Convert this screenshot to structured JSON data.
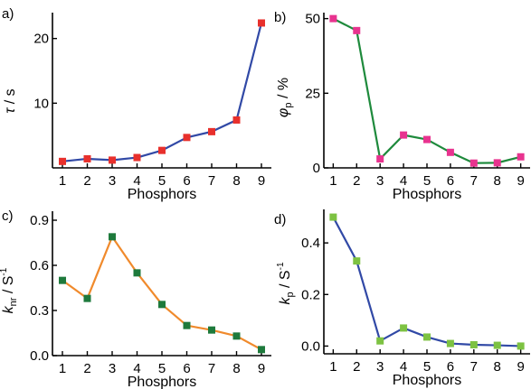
{
  "chart_data": [
    {
      "type": "line",
      "panel_label": "a)",
      "xlabel": "Phosphors",
      "ylabel": {
        "main": "τ",
        "sub": "",
        "unit": " / s",
        "sup": ""
      },
      "x": [
        1,
        2,
        3,
        4,
        5,
        6,
        7,
        8,
        9
      ],
      "series": [
        {
          "values": [
            1.0,
            1.4,
            1.2,
            1.6,
            2.7,
            4.7,
            5.6,
            7.4,
            22.4
          ]
        }
      ],
      "xlim": [
        0.6,
        9.4
      ],
      "ylim": [
        0,
        24
      ],
      "yticks": [
        10,
        20
      ],
      "line_color": "#3149a6",
      "marker_color": "#e8302c"
    },
    {
      "type": "line",
      "panel_label": "b)",
      "xlabel": "Phosphors",
      "ylabel": {
        "main": "φ",
        "sub": "p",
        "unit": " / %",
        "sup": ""
      },
      "x": [
        1,
        2,
        3,
        4,
        5,
        6,
        7,
        8,
        9
      ],
      "series": [
        {
          "values": [
            50,
            46,
            3,
            11,
            9.5,
            5.2,
            1.6,
            1.7,
            3.7
          ]
        }
      ],
      "xlim": [
        0.6,
        9.4
      ],
      "ylim": [
        0,
        52
      ],
      "yticks": [
        0,
        25,
        50
      ],
      "line_color": "#1e8a3c",
      "marker_color": "#e8338f"
    },
    {
      "type": "line",
      "panel_label": "c)",
      "xlabel": "Phosphors",
      "ylabel": {
        "main": "k",
        "sub": "nr",
        "unit": " / S",
        "sup": "-1"
      },
      "x": [
        1,
        2,
        3,
        4,
        5,
        6,
        7,
        8,
        9
      ],
      "series": [
        {
          "values": [
            0.5,
            0.38,
            0.79,
            0.55,
            0.34,
            0.2,
            0.17,
            0.13,
            0.04
          ]
        }
      ],
      "xlim": [
        0.6,
        9.4
      ],
      "ylim": [
        0,
        0.96
      ],
      "yticks": [
        0.0,
        0.3,
        0.6,
        0.9
      ],
      "ytick_labels": [
        "0.0",
        "0.3",
        "0.6",
        "0.9"
      ],
      "line_color": "#f08a2c",
      "marker_color": "#1e7a3c"
    },
    {
      "type": "line",
      "panel_label": "d)",
      "xlabel": "Phosphors",
      "ylabel": {
        "main": "k",
        "sub": "p",
        "unit": " / S",
        "sup": "-1"
      },
      "x": [
        1,
        2,
        3,
        4,
        5,
        6,
        7,
        8,
        9
      ],
      "series": [
        {
          "values": [
            0.5,
            0.33,
            0.02,
            0.07,
            0.035,
            0.01,
            0.005,
            0.003,
            0.0
          ]
        }
      ],
      "xlim": [
        0.6,
        9.4
      ],
      "ylim": [
        -0.03,
        0.53
      ],
      "yticks": [
        0.0,
        0.2,
        0.4
      ],
      "ytick_labels": [
        "0.0",
        "0.2",
        "0.4"
      ],
      "line_color": "#3149a6",
      "marker_color": "#7dc242"
    }
  ]
}
